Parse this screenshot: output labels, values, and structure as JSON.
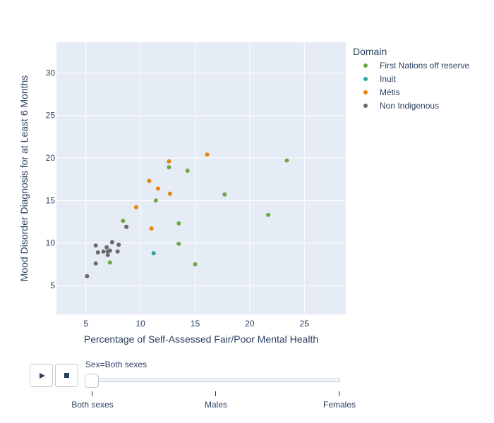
{
  "chart_data": {
    "type": "scatter",
    "title": "",
    "xlabel": "Percentage of Self-Assessed Fair/Poor Mental Health",
    "ylabel": "Mood Disorder Diagnosis for at Least 6 Months",
    "xlim": [
      2.3,
      28.8
    ],
    "ylim": [
      1.6,
      33.6
    ],
    "x_ticks": [
      5,
      10,
      15,
      20,
      25
    ],
    "y_ticks": [
      5,
      10,
      15,
      20,
      25,
      30
    ],
    "grid": true,
    "legend_title": "Domain",
    "legend_position": "right",
    "series": [
      {
        "name": "First Nations off reserve",
        "color": "#6ea843",
        "points": [
          [
            23.4,
            19.7
          ],
          [
            21.7,
            13.3
          ],
          [
            17.7,
            15.7
          ],
          [
            14.3,
            18.5
          ],
          [
            12.6,
            18.9
          ],
          [
            11.4,
            15.0
          ],
          [
            13.5,
            12.3
          ],
          [
            13.5,
            9.9
          ],
          [
            15.0,
            7.5
          ],
          [
            8.4,
            12.6
          ],
          [
            7.2,
            7.7
          ]
        ]
      },
      {
        "name": "Inuit",
        "color": "#2ba5a4",
        "points": [
          [
            11.2,
            8.8
          ]
        ]
      },
      {
        "name": "Métis",
        "color": "#e2860c",
        "points": [
          [
            16.1,
            20.4
          ],
          [
            12.6,
            19.6
          ],
          [
            10.8,
            17.3
          ],
          [
            11.6,
            16.4
          ],
          [
            12.7,
            15.8
          ],
          [
            9.6,
            14.2
          ],
          [
            11.0,
            11.7
          ]
        ]
      },
      {
        "name": "Non Indigenous",
        "color": "#696969",
        "points": [
          [
            5.1,
            6.1
          ],
          [
            5.9,
            7.6
          ],
          [
            5.9,
            9.7
          ],
          [
            6.1,
            8.9
          ],
          [
            6.6,
            9.0
          ],
          [
            6.9,
            9.5
          ],
          [
            7.0,
            9.0
          ],
          [
            7.0,
            8.6
          ],
          [
            7.2,
            9.1
          ],
          [
            7.4,
            10.1
          ],
          [
            7.9,
            9.0
          ],
          [
            8.0,
            9.8
          ],
          [
            8.7,
            11.9
          ]
        ]
      }
    ]
  },
  "animation": {
    "play_label": "play",
    "stop_label": "stop",
    "current_value": "Sex=Both sexes",
    "steps": [
      "Both sexes",
      "Males",
      "Females"
    ],
    "active_index": 0
  }
}
